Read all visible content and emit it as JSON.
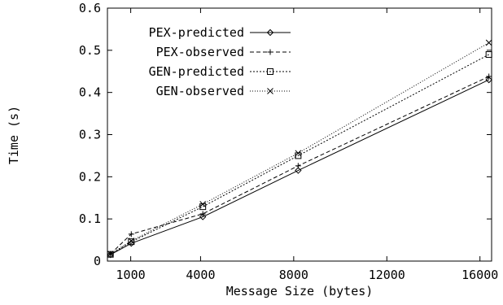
{
  "chart_data": {
    "type": "line",
    "xlabel": "Message Size (bytes)",
    "ylabel": "Time (s)",
    "xlim": [
      0,
      16500
    ],
    "ylim": [
      0,
      0.6
    ],
    "xticks": [
      1000,
      4000,
      8000,
      12000,
      16000
    ],
    "xtick_labels": [
      "1000",
      "4000",
      "8000",
      "12000",
      "16000"
    ],
    "yticks": [
      0,
      0.1,
      0.2,
      0.3,
      0.4,
      0.5,
      0.6
    ],
    "ytick_labels": [
      "0",
      "0.1",
      "0.2",
      "0.3",
      "0.4",
      "0.5",
      "0.6"
    ],
    "grid": false,
    "legend_position": "top-left",
    "x": [
      128,
      1024,
      4096,
      8192,
      16384
    ],
    "series": [
      {
        "name": "PEX-predicted",
        "marker": "diamond",
        "dash": "solid",
        "values": [
          0.015,
          0.042,
          0.105,
          0.215,
          0.43
        ]
      },
      {
        "name": "PEX-observed",
        "marker": "plus",
        "dash": "dashed",
        "values": [
          0.017,
          0.064,
          0.112,
          0.226,
          0.438
        ]
      },
      {
        "name": "GEN-predicted",
        "marker": "square",
        "dash": "dotted",
        "values": [
          0.016,
          0.046,
          0.129,
          0.25,
          0.49
        ]
      },
      {
        "name": "GEN-observed",
        "marker": "cross",
        "dash": "dense-dotted",
        "values": [
          0.017,
          0.048,
          0.135,
          0.256,
          0.518
        ]
      }
    ]
  }
}
